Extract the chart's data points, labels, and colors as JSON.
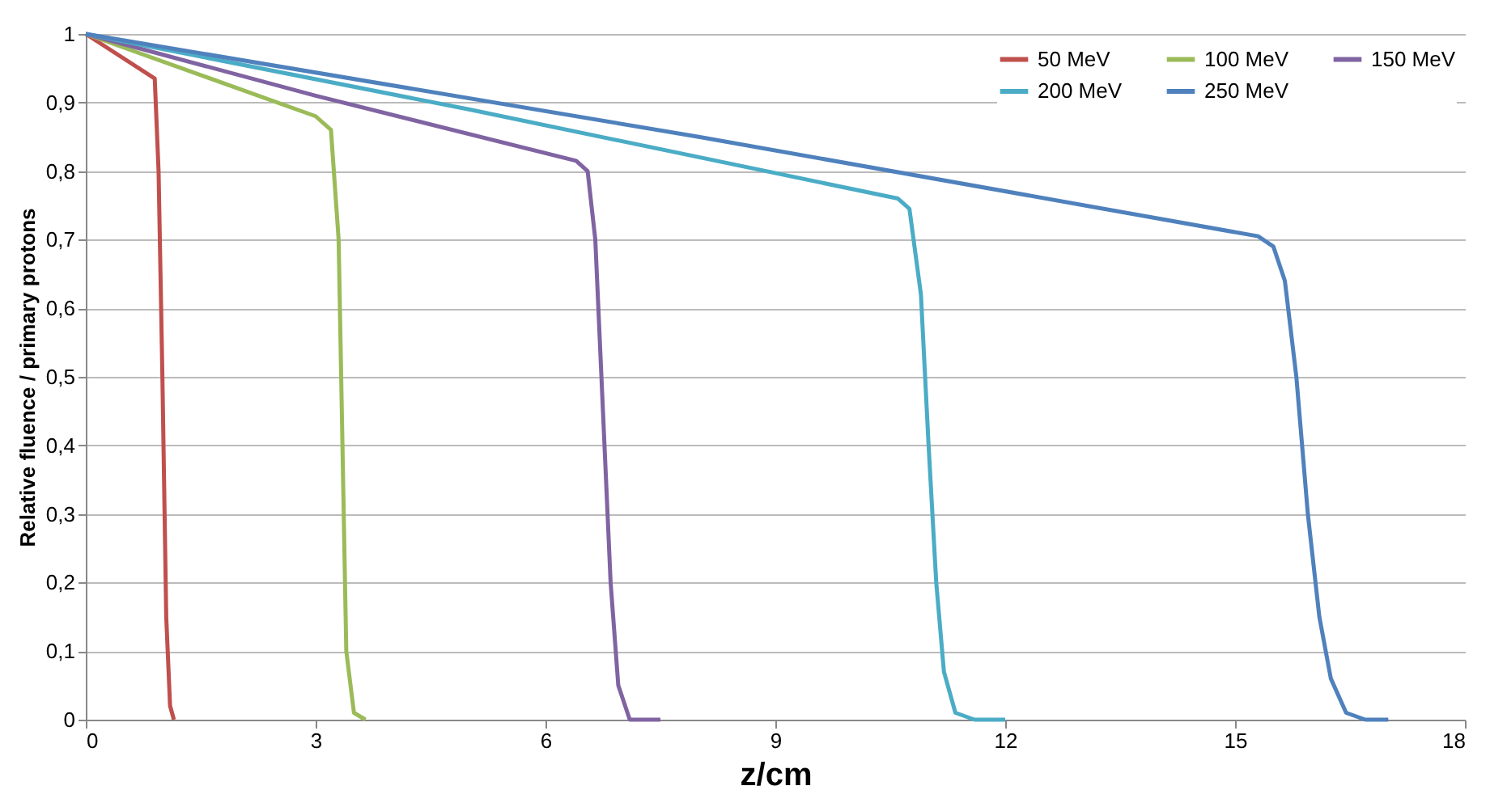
{
  "chart_data": {
    "type": "line",
    "xlabel": "z/cm",
    "ylabel": "Relative fluence / primary protons",
    "xlim": [
      0,
      18
    ],
    "xticks": [
      0,
      3,
      6,
      9,
      12,
      15,
      18
    ],
    "ylim": [
      0,
      1
    ],
    "yticks": [
      0,
      {
        "value": 0.1,
        "label": "0,1"
      },
      {
        "value": 0.2,
        "label": "0,2"
      },
      {
        "value": 0.3,
        "label": "0,3"
      },
      {
        "value": 0.4,
        "label": "0,4"
      },
      {
        "value": 0.5,
        "label": "0,5"
      },
      {
        "value": 0.6,
        "label": "0,6"
      },
      {
        "value": 0.7,
        "label": "0,7"
      },
      {
        "value": 0.8,
        "label": "0,8"
      },
      {
        "value": 0.9,
        "label": "0,9"
      },
      1
    ],
    "grid": "y",
    "legend": "top right",
    "marker": "none",
    "line_style": "solid",
    "series": [
      {
        "name": "50 MeV",
        "color": "#c0504d",
        "x": [
          0,
          0.9,
          0.95,
          1.0,
          1.05,
          1.1,
          1.15
        ],
        "values": [
          1,
          0.935,
          0.8,
          0.5,
          0.15,
          0.02,
          0
        ]
      },
      {
        "name": "100 MeV",
        "color": "#9bbb59",
        "x": [
          0,
          1.5,
          3.0,
          3.2,
          3.3,
          3.35,
          3.4,
          3.5,
          3.65
        ],
        "values": [
          1,
          0.94,
          0.88,
          0.86,
          0.7,
          0.4,
          0.1,
          0.01,
          0
        ]
      },
      {
        "name": "150 MeV",
        "color": "#8064a2",
        "x": [
          0,
          3.0,
          6.4,
          6.55,
          6.65,
          6.75,
          6.85,
          6.95,
          7.1,
          7.5
        ],
        "values": [
          1,
          0.91,
          0.815,
          0.8,
          0.7,
          0.45,
          0.2,
          0.05,
          0,
          0
        ]
      },
      {
        "name": "200 MeV",
        "color": "#4bacc6",
        "x": [
          0,
          5.0,
          10.6,
          10.75,
          10.9,
          11.0,
          11.1,
          11.2,
          11.35,
          11.6,
          12.0
        ],
        "values": [
          1,
          0.89,
          0.76,
          0.745,
          0.62,
          0.4,
          0.2,
          0.07,
          0.01,
          0,
          0
        ]
      },
      {
        "name": "250 MeV",
        "color": "#4f81bd",
        "x": [
          0,
          8.0,
          15.3,
          15.5,
          15.65,
          15.8,
          15.95,
          16.1,
          16.25,
          16.45,
          16.7,
          17.0
        ],
        "values": [
          1,
          0.85,
          0.705,
          0.69,
          0.64,
          0.5,
          0.3,
          0.15,
          0.06,
          0.01,
          0,
          0
        ]
      }
    ]
  }
}
